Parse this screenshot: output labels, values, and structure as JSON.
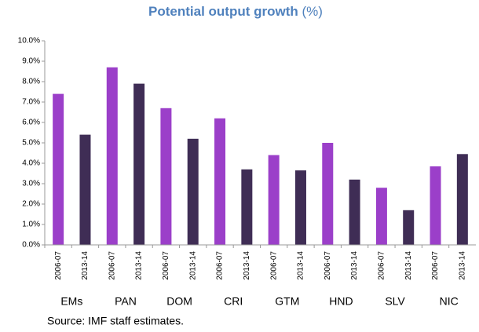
{
  "chart_data": {
    "type": "bar",
    "title": "Potential output growth",
    "title_unit": "(%)",
    "categories": [
      "EMs",
      "PAN",
      "DOM",
      "CRI",
      "GTM",
      "HND",
      "SLV",
      "NIC"
    ],
    "series": [
      {
        "name": "2006-07",
        "color": "#9b3fc9",
        "values": [
          7.4,
          8.7,
          6.7,
          6.2,
          4.4,
          5.0,
          2.8,
          3.85
        ]
      },
      {
        "name": "2013-14",
        "color": "#3f2d55",
        "values": [
          5.4,
          7.9,
          5.2,
          3.7,
          3.65,
          3.2,
          1.7,
          4.45
        ]
      }
    ],
    "ylim": [
      0,
      10
    ],
    "yticks": [
      {
        "value": 0,
        "label": "0.0%"
      },
      {
        "value": 1,
        "label": "1.0%"
      },
      {
        "value": 2,
        "label": "2.0%"
      },
      {
        "value": 3,
        "label": "3.0%"
      },
      {
        "value": 4,
        "label": "4.0%"
      },
      {
        "value": 5,
        "label": "5.0%"
      },
      {
        "value": 6,
        "label": "6.0%"
      },
      {
        "value": 7,
        "label": "7.0%"
      },
      {
        "value": 8,
        "label": "8.0%"
      },
      {
        "value": 9,
        "label": "9.0%"
      },
      {
        "value": 10,
        "label": "10.0%"
      }
    ],
    "grid": false,
    "source": "Source: IMF staff estimates."
  }
}
